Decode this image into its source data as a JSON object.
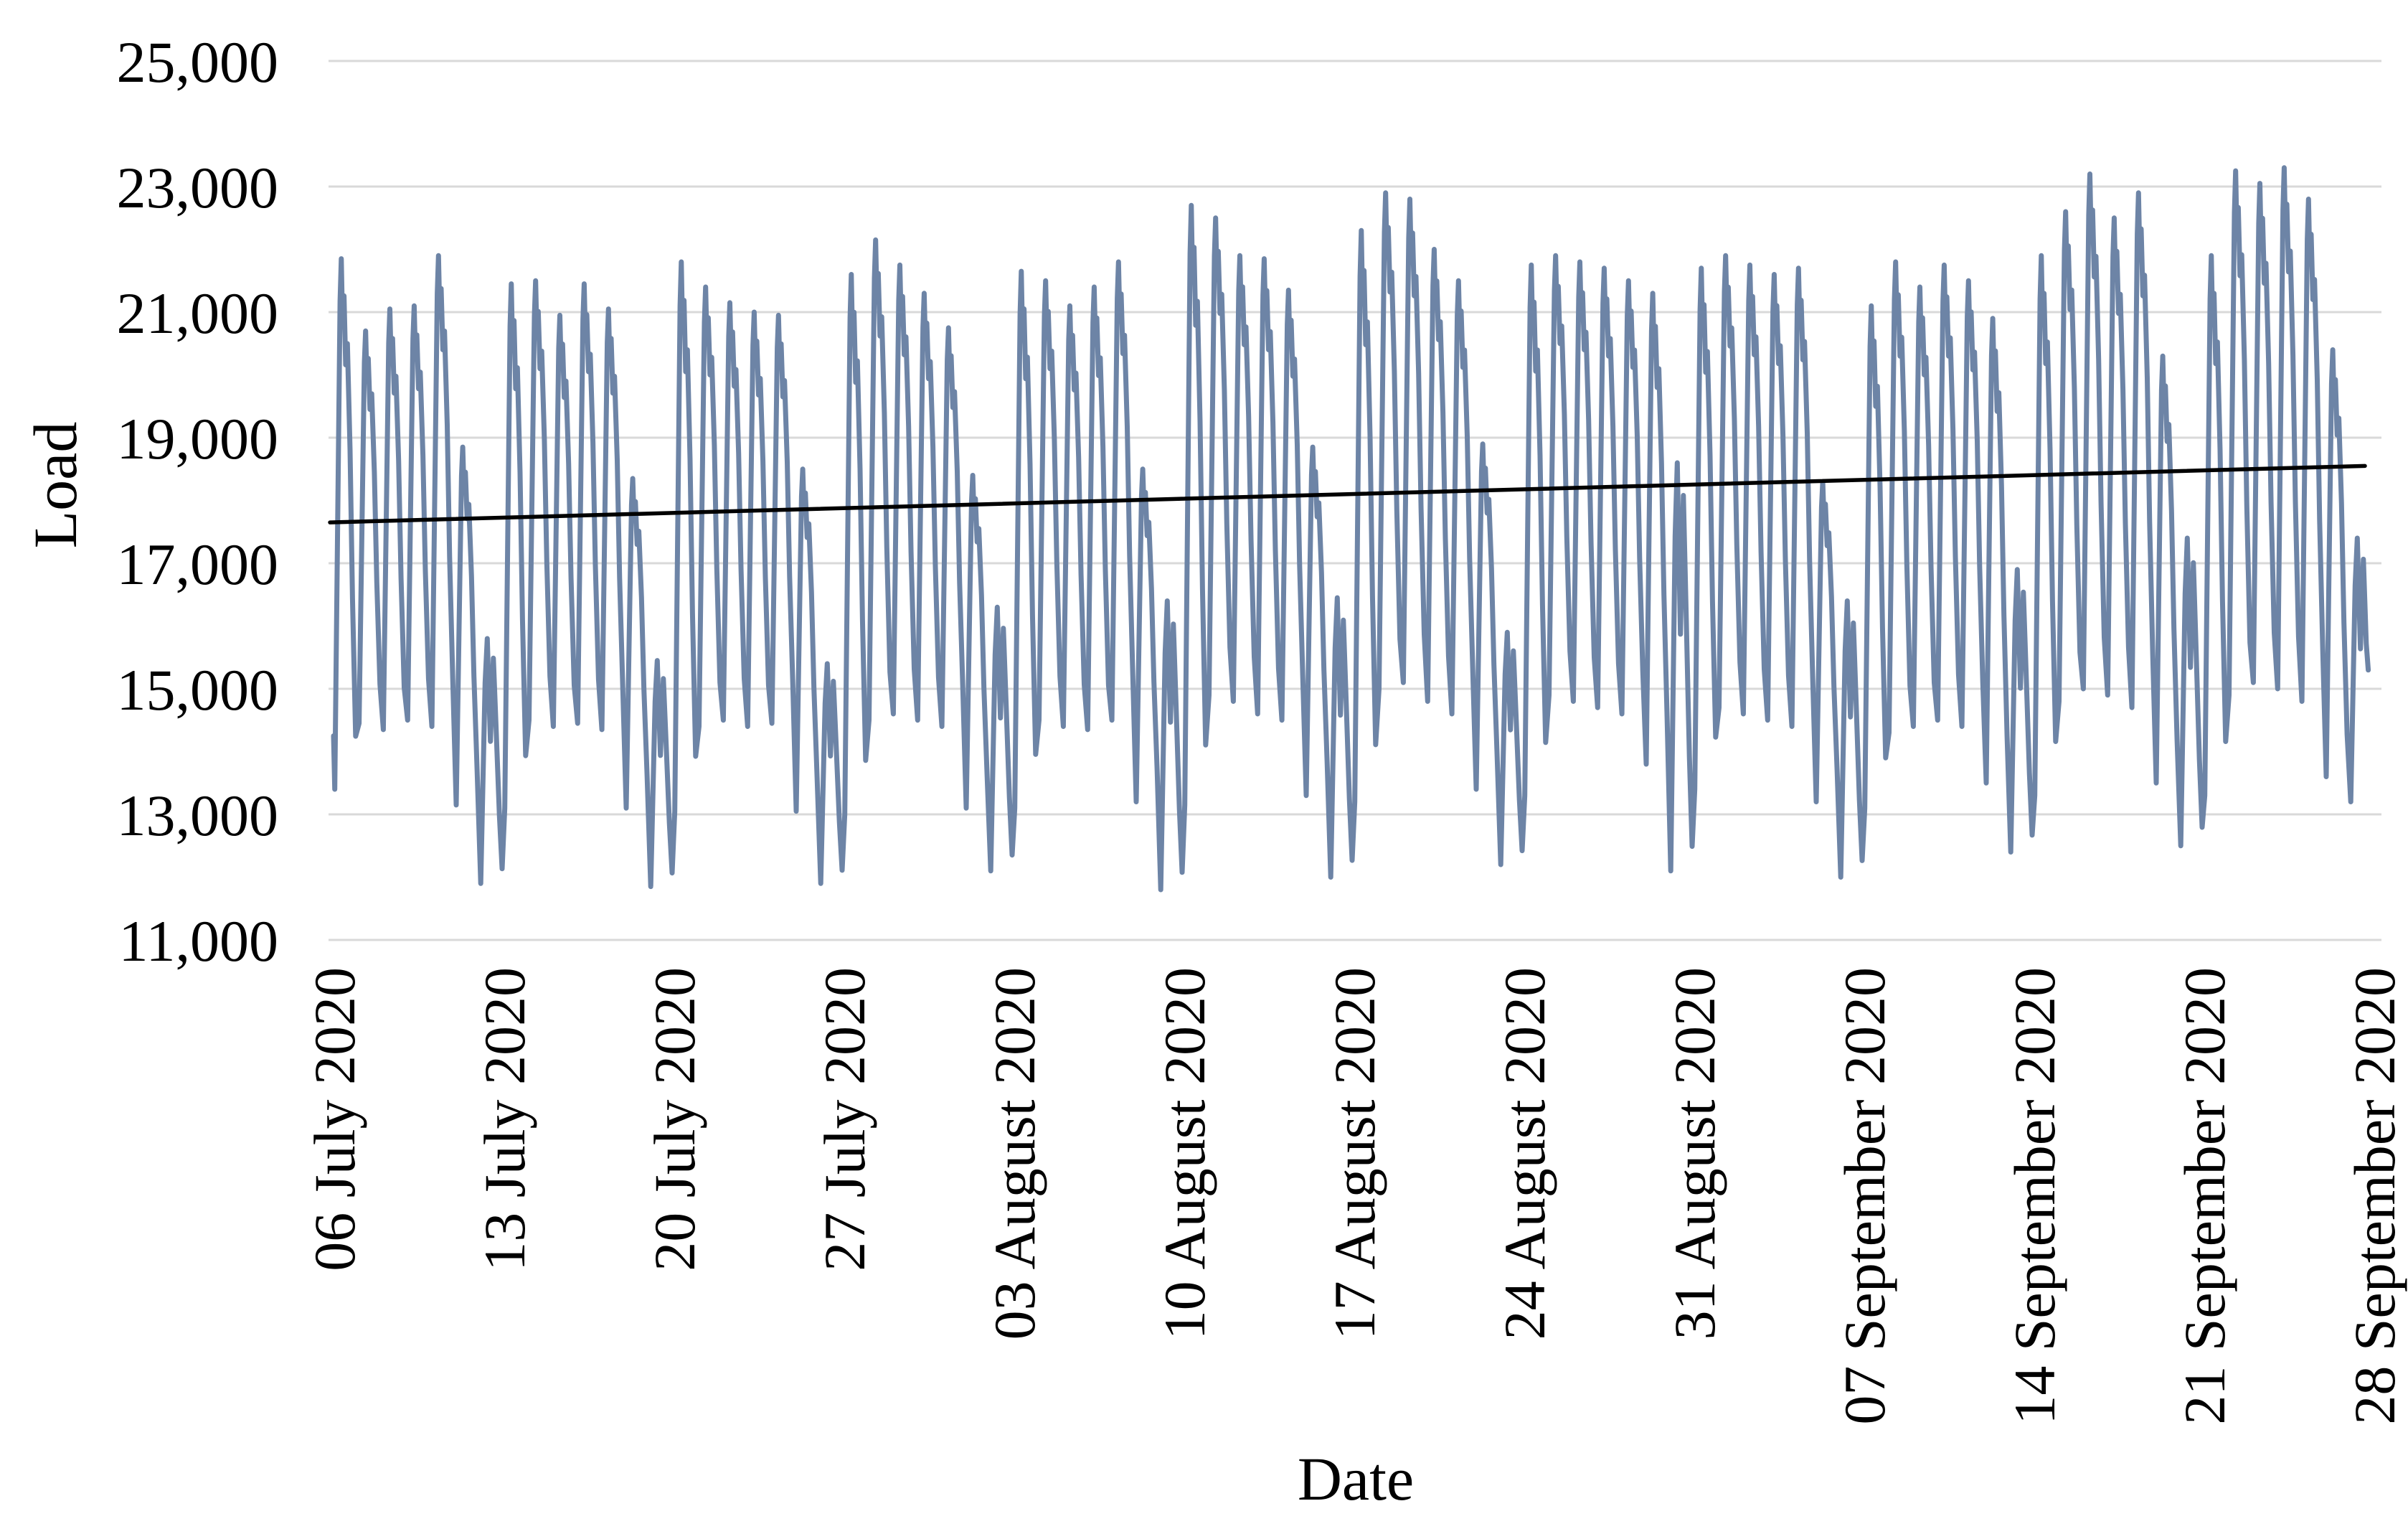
{
  "chart_data": {
    "type": "line",
    "title": "",
    "xlabel": "Date",
    "ylabel": "Load",
    "grid": true,
    "legend": "none",
    "ylim": [
      11000,
      25000
    ],
    "y_step": 2000,
    "y_tick_labels": [
      "25,000",
      "23,000",
      "21,000",
      "19,000",
      "17,000",
      "15,000",
      "13,000",
      "11,000"
    ],
    "x_tick_labels": [
      "06 July 2020",
      "13 July 2020",
      "20 July 2020",
      "27 July 2020",
      "03 August 2020",
      "10 August 2020",
      "17 August 2020",
      "24 August 2020",
      "31 August 2020",
      "07 September 2020",
      "14 September 2020",
      "21 September 2020",
      "28 September 2020"
    ],
    "colors": {
      "series": "#6d84a6",
      "trend": "#000000",
      "gridline": "#d9d9d9",
      "text": "#000000",
      "background": "#ffffff"
    },
    "series": [
      {
        "name": "Load",
        "unit_days_per_point": "each entry is one calendar day, 06 July 2020 through 28 September 2020",
        "day_fields": [
          "daily_peak",
          "morning_min",
          "profile"
        ],
        "start_value": 14250,
        "days": [
          [
            21850,
            13400,
            "w"
          ],
          [
            20700,
            14450,
            "w"
          ],
          [
            21050,
            14350,
            "w"
          ],
          [
            21100,
            14500,
            "w"
          ],
          [
            21900,
            14400,
            "w"
          ],
          [
            18850,
            13150,
            "w"
          ],
          [
            15800,
            11900,
            "s"
          ],
          [
            21450,
            13100,
            "w"
          ],
          [
            21500,
            14500,
            "w"
          ],
          [
            20950,
            14400,
            "w"
          ],
          [
            21450,
            14450,
            "w"
          ],
          [
            21050,
            14350,
            "w"
          ],
          [
            18350,
            13100,
            "w"
          ],
          [
            15450,
            11850,
            "s"
          ],
          [
            21800,
            13050,
            "w"
          ],
          [
            21400,
            14400,
            "w"
          ],
          [
            21150,
            14500,
            "w"
          ],
          [
            21000,
            14400,
            "w"
          ],
          [
            20950,
            14450,
            "w"
          ],
          [
            18500,
            13050,
            "w"
          ],
          [
            15400,
            11900,
            "s"
          ],
          [
            21600,
            13000,
            "w"
          ],
          [
            22150,
            14500,
            "w"
          ],
          [
            21750,
            14600,
            "w"
          ],
          [
            21300,
            14500,
            "w"
          ],
          [
            20750,
            14400,
            "w"
          ],
          [
            18400,
            13100,
            "w"
          ],
          [
            16300,
            12100,
            "s"
          ],
          [
            21650,
            13100,
            "w"
          ],
          [
            21500,
            14500,
            "w"
          ],
          [
            21100,
            14400,
            "w"
          ],
          [
            21400,
            14350,
            "w"
          ],
          [
            21800,
            14500,
            "w"
          ],
          [
            18500,
            13200,
            "w"
          ],
          [
            16400,
            11800,
            "s"
          ],
          [
            22700,
            13150,
            "w"
          ],
          [
            22500,
            14900,
            "w"
          ],
          [
            21900,
            14800,
            "w"
          ],
          [
            21850,
            14600,
            "w"
          ],
          [
            21350,
            14500,
            "w"
          ],
          [
            18850,
            13300,
            "w"
          ],
          [
            16450,
            12000,
            "s"
          ],
          [
            22300,
            13200,
            "w"
          ],
          [
            22900,
            15000,
            "w"
          ],
          [
            22800,
            15100,
            "w"
          ],
          [
            22000,
            14800,
            "w"
          ],
          [
            21500,
            14600,
            "w"
          ],
          [
            18900,
            13400,
            "w"
          ],
          [
            15900,
            12200,
            "s"
          ],
          [
            21750,
            13300,
            "w"
          ],
          [
            21900,
            14900,
            "w"
          ],
          [
            21800,
            14800,
            "w"
          ],
          [
            21700,
            14700,
            "w"
          ],
          [
            21500,
            14600,
            "w"
          ],
          [
            21300,
            13800,
            "w"
          ],
          [
            18600,
            12100,
            "s"
          ],
          [
            21700,
            13400,
            "w"
          ],
          [
            21900,
            14700,
            "w"
          ],
          [
            21750,
            14600,
            "w"
          ],
          [
            21600,
            14500,
            "w"
          ],
          [
            21700,
            14400,
            "w"
          ],
          [
            18300,
            13200,
            "w"
          ],
          [
            16400,
            12000,
            "s"
          ],
          [
            21100,
            13100,
            "w"
          ],
          [
            21800,
            14300,
            "w"
          ],
          [
            21400,
            14400,
            "w"
          ],
          [
            21750,
            14500,
            "w"
          ],
          [
            21500,
            14400,
            "w"
          ],
          [
            20900,
            13500,
            "w"
          ],
          [
            16900,
            12400,
            "s"
          ],
          [
            21900,
            13300,
            "w"
          ],
          [
            22600,
            14800,
            "w"
          ],
          [
            23200,
            15000,
            "w"
          ],
          [
            22500,
            14900,
            "w"
          ],
          [
            22900,
            14700,
            "w"
          ],
          [
            20300,
            13500,
            "w"
          ],
          [
            17400,
            12500,
            "s"
          ],
          [
            21900,
            13300,
            "w"
          ],
          [
            23250,
            14900,
            "w"
          ],
          [
            23050,
            15100,
            "w"
          ],
          [
            23300,
            15000,
            "w"
          ],
          [
            22800,
            14800,
            "w"
          ],
          [
            20400,
            13600,
            "w"
          ],
          [
            17400,
            13200,
            "e"
          ]
        ],
        "profiles": {
          "w": [
            [
              0.05,
              0.0
            ],
            [
              0.27,
              0.92
            ],
            [
              0.32,
              1.0
            ],
            [
              0.37,
              0.88
            ],
            [
              0.43,
              0.93
            ],
            [
              0.5,
              0.8
            ],
            [
              0.57,
              0.84
            ],
            [
              0.68,
              0.64
            ],
            [
              0.78,
              0.36
            ],
            [
              0.91,
              0.1
            ]
          ],
          "s": [
            [
              0.06,
              0.0
            ],
            [
              0.24,
              0.82
            ],
            [
              0.33,
              1.0
            ],
            [
              0.46,
              0.58
            ],
            [
              0.58,
              0.92
            ],
            [
              0.7,
              0.62
            ],
            [
              0.83,
              0.28
            ],
            [
              0.94,
              0.06
            ]
          ],
          "e": [
            [
              0.06,
              0.0
            ],
            [
              0.24,
              0.82
            ],
            [
              0.33,
              1.0
            ],
            [
              0.46,
              0.58
            ],
            [
              0.58,
              0.92
            ],
            [
              0.7,
              0.6
            ],
            [
              0.78,
              0.5
            ]
          ]
        }
      }
    ],
    "trend_line": {
      "start_value": 17650,
      "end_value": 18550
    }
  }
}
